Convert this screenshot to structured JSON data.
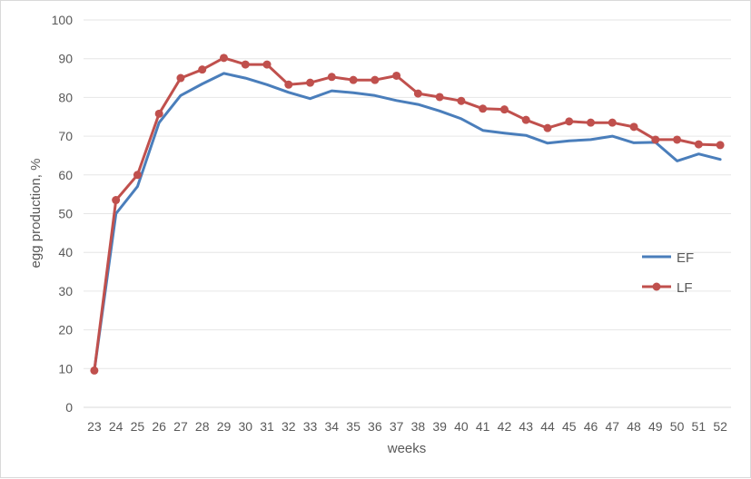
{
  "chart_data": {
    "type": "line",
    "title": "",
    "xlabel": "weeks",
    "ylabel": "egg production, %",
    "ylim": [
      0,
      100
    ],
    "yticks": [
      0,
      10,
      20,
      30,
      40,
      50,
      60,
      70,
      80,
      90,
      100
    ],
    "grid": "horizontal",
    "legend_position": "right",
    "categories": [
      "23",
      "24",
      "25",
      "26",
      "27",
      "28",
      "29",
      "30",
      "31",
      "32",
      "33",
      "34",
      "35",
      "36",
      "37",
      "38",
      "39",
      "40",
      "41",
      "42",
      "43",
      "44",
      "45",
      "46",
      "47",
      "48",
      "49",
      "50",
      "51",
      "52"
    ],
    "series": [
      {
        "name": "EF",
        "color": "#4a7ebb",
        "markers": false,
        "values": [
          9.5,
          50,
          57,
          73.5,
          80.5,
          83.5,
          86.2,
          85,
          83.3,
          81.3,
          79.7,
          81.7,
          81.2,
          80.5,
          79.2,
          78.2,
          76.5,
          74.5,
          71.5,
          70.8,
          70.2,
          68.2,
          68.8,
          69.1,
          70,
          68.3,
          68.4,
          63.6,
          65.4,
          64
        ]
      },
      {
        "name": "LF",
        "color": "#c0504d",
        "markers": true,
        "values": [
          9.5,
          53.5,
          60,
          75.8,
          85,
          87.2,
          90.2,
          88.5,
          88.5,
          83.3,
          83.8,
          85.3,
          84.5,
          84.5,
          85.6,
          81,
          80.1,
          79.1,
          77.1,
          76.9,
          74.2,
          72.1,
          73.8,
          73.5,
          73.5,
          72.4,
          69.1,
          69.1,
          67.9,
          67.7
        ]
      }
    ]
  }
}
